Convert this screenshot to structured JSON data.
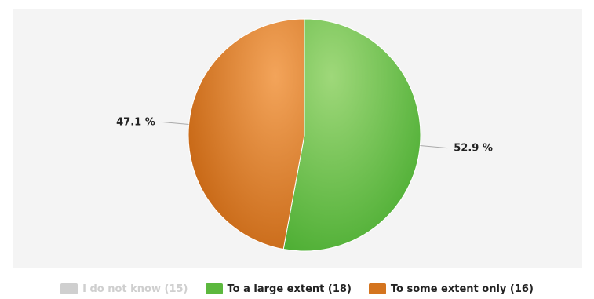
{
  "chart_data": {
    "type": "pie",
    "series": [
      {
        "name": "I do not know (15)",
        "value": 0,
        "color": "#c8c8c8",
        "visible": false
      },
      {
        "name": "To a large extent (18)",
        "value": 52.9,
        "color": "#5cb83e",
        "visible": true
      },
      {
        "name": "To some extent only (16)",
        "value": 47.1,
        "color": "#d4741e",
        "visible": true
      }
    ],
    "data_labels": [
      "52.9 %",
      "47.1 %"
    ],
    "legend_position": "bottom"
  }
}
